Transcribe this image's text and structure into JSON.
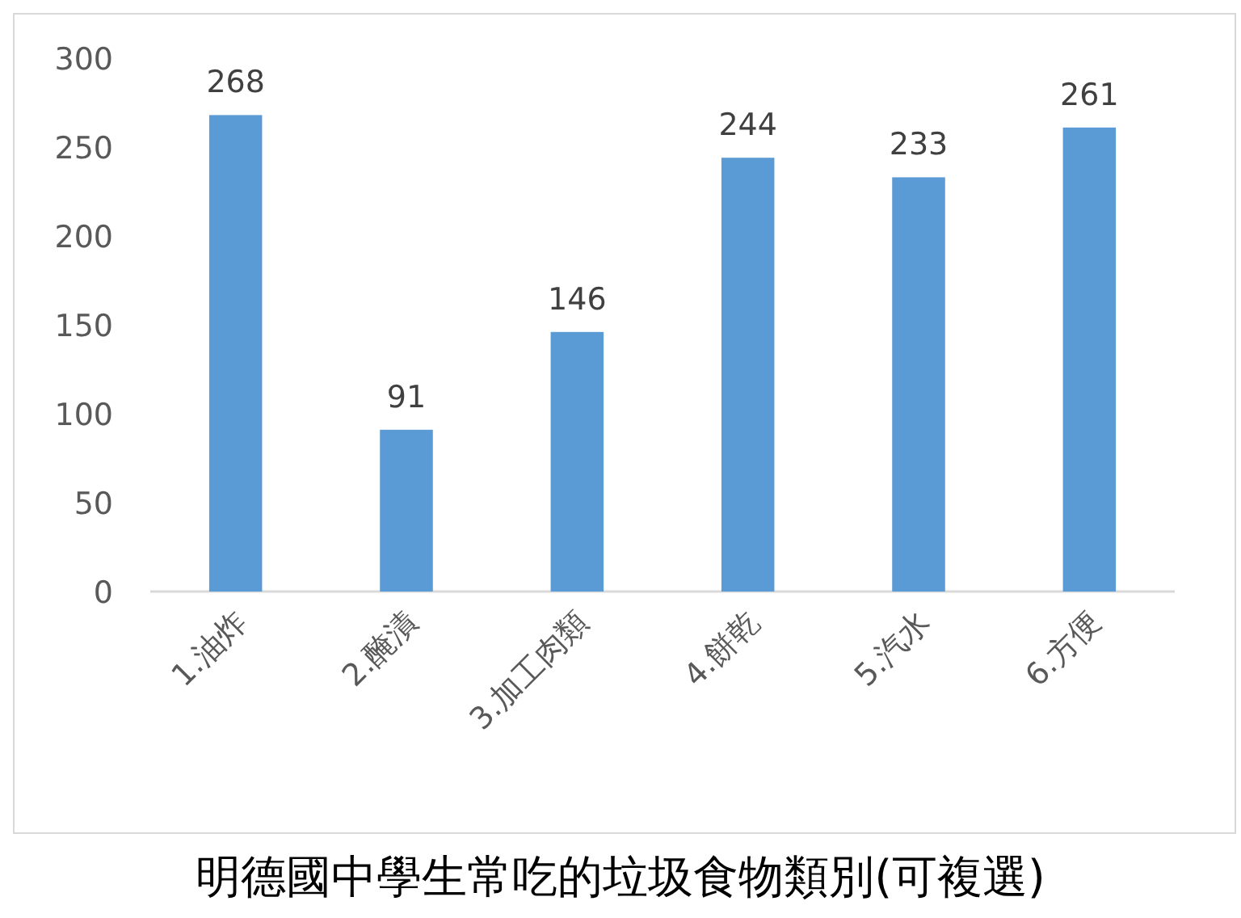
{
  "chart_data": {
    "type": "bar",
    "title": "明德國中學生常吃的垃圾食物類別(可複選)",
    "categories": [
      "1.油炸",
      "2.醃漬",
      "3.加工肉類",
      "4.餅乾",
      "5.汽水",
      "6.方便"
    ],
    "values": [
      268,
      91,
      146,
      244,
      233,
      261
    ],
    "color": "#5b9bd5",
    "ylim": [
      0,
      300
    ],
    "yticks": [
      0,
      50,
      100,
      150,
      200,
      250,
      300
    ],
    "data_labels": true
  }
}
